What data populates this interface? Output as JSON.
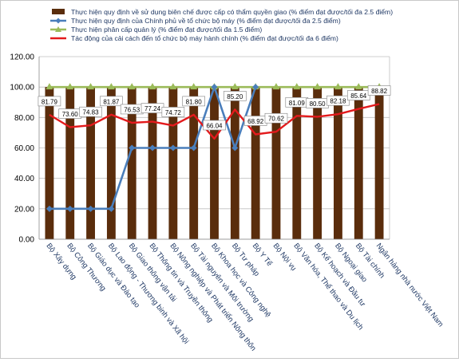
{
  "chart_data": {
    "type": "bar",
    "title": "",
    "xlabel": "",
    "ylabel": "",
    "ylim": [
      0,
      120
    ],
    "yticks": [
      "0.00",
      "20.00",
      "40.00",
      "60.00",
      "80.00",
      "100.00",
      "120.00"
    ],
    "grid": "horizontal",
    "legend_position": "top",
    "categories": [
      "Bộ Xây dựng",
      "Bộ Công Thương",
      "Bộ Giáo dục và Đào tạo",
      "Bộ Lao động - Thương binh và Xã hội",
      "Bộ Giao thông vận tải",
      "Bộ Thông tin và Truyền thông",
      "Bộ Nông nghiệp và Phát triển Nông thôn",
      "Bộ Tài nguyên và Môi trường",
      "Bộ Khoa học và Công nghệ",
      "Bộ Tư pháp",
      "Bộ Y Tế",
      "Bộ Nội vụ",
      "Bộ Văn hóa, Thể thao và Du lịch",
      "Bộ Kế hoạch và Đầu tư",
      "Bộ Ngoại giao",
      "Bộ Tài chính",
      "Ngân hàng nhà nước Việt Nam"
    ],
    "series": [
      {
        "name": "Thực hiện quy định về sử dụng biên chế được cấp có thẩm quyền giao (% điểm đạt được/tối đa 2.5 điểm)",
        "kind": "bar",
        "color": "#5a2d0c",
        "values": [
          100,
          100,
          100,
          100,
          100,
          100,
          100,
          100,
          100,
          100,
          100,
          100,
          100,
          100,
          100,
          100,
          100
        ]
      },
      {
        "name": "Thực hiện quy định của Chính phủ về tổ chức bộ máy (% điểm đạt được/tối đa 2.5 điểm)",
        "kind": "line",
        "color": "#4a7ebb",
        "values": [
          20,
          20,
          20,
          20,
          60,
          60,
          60,
          60,
          100,
          60,
          100,
          null,
          null,
          null,
          null,
          null,
          null
        ]
      },
      {
        "name": "Thực hiện phân cấp quản lý (% điểm đạt được/tối đa 1.5 điểm)",
        "kind": "line",
        "color": "#9bbb59",
        "values": [
          100,
          100,
          100,
          100,
          100,
          100,
          100,
          100,
          100,
          100,
          100,
          100,
          100,
          100,
          100,
          100,
          100
        ]
      },
      {
        "name": "Tác động của cải cách đến tổ chức bộ máy hành chính (% điểm đạt được/tối đa 6 điểm)",
        "kind": "line",
        "color": "#e31a1c",
        "values": [
          81.79,
          73.6,
          74.83,
          81.87,
          76.53,
          77.24,
          74.72,
          81.8,
          66.04,
          85.2,
          68.92,
          70.62,
          81.09,
          80.5,
          82.18,
          85.64,
          88.82
        ]
      }
    ],
    "data_labels": [
      "81.79",
      "73.60",
      "74.83",
      "81.87",
      "76.53",
      "77.24",
      "74.72",
      "81.80",
      "66.04",
      "85.20",
      "68.92",
      "70.62",
      "81.09",
      "80.50",
      "82.18",
      "85.64",
      "88.82"
    ]
  }
}
